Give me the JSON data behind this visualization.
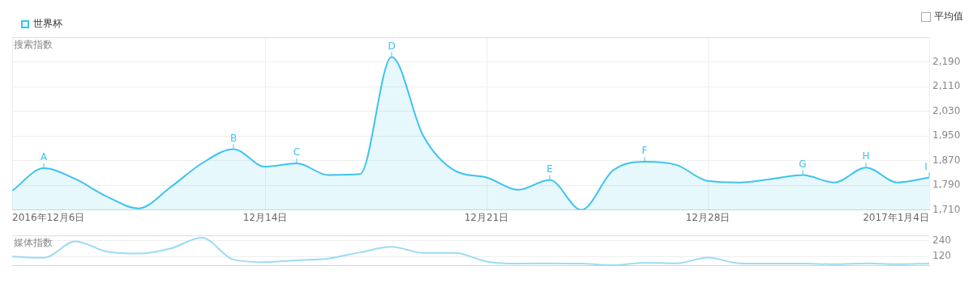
{
  "chart_data": [
    {
      "type": "area",
      "ylabel": "搜索指数",
      "legend": "top left",
      "grid": true,
      "x": [
        "2016-12-06",
        "2016-12-07",
        "2016-12-08",
        "2016-12-09",
        "2016-12-10",
        "2016-12-11",
        "2016-12-12",
        "2016-12-13",
        "2016-12-14",
        "2016-12-15",
        "2016-12-16",
        "2016-12-17",
        "2016-12-18",
        "2016-12-19",
        "2016-12-20",
        "2016-12-21",
        "2016-12-22",
        "2016-12-23",
        "2016-12-24",
        "2016-12-25",
        "2016-12-26",
        "2016-12-27",
        "2016-12-28",
        "2016-12-29",
        "2016-12-30",
        "2016-12-31",
        "2017-01-01",
        "2017-01-02",
        "2017-01-03",
        "2017-01-04"
      ],
      "xlim": [
        "2016-12-06",
        "2017-01-04"
      ],
      "xticks": [
        {
          "value": "2016-12-06",
          "label": "2016年12月6日"
        },
        {
          "value": "2016-12-14",
          "label": "12月14日"
        },
        {
          "value": "2016-12-21",
          "label": "12月21日"
        },
        {
          "value": "2016-12-28",
          "label": "12月28日"
        },
        {
          "value": "2017-01-04",
          "label": "2017年1月4日"
        }
      ],
      "ylim": [
        1710,
        2270
      ],
      "yticks": [
        {
          "value": 1710,
          "label": "1,710"
        },
        {
          "value": 1790,
          "label": "1,790"
        },
        {
          "value": 1870,
          "label": "1,870"
        },
        {
          "value": 1950,
          "label": "1,950"
        },
        {
          "value": 2030,
          "label": "2,030"
        },
        {
          "value": 2110,
          "label": "2,110"
        },
        {
          "value": 2190,
          "label": "2,190"
        }
      ],
      "series": [
        {
          "name": "世界杯",
          "color": "#3cc3f0",
          "values": [
            1772,
            1845,
            1810,
            1753,
            1715,
            1783,
            1861,
            1907,
            1850,
            1861,
            1823,
            1826,
            2206,
            1950,
            1837,
            1815,
            1775,
            1807,
            1710,
            1838,
            1866,
            1856,
            1804,
            1799,
            1810,
            1823,
            1799,
            1847,
            1799,
            1815
          ]
        }
      ],
      "annotations": [
        "平均值",
        {
          "text": "A",
          "x": "2016-12-07",
          "y": 1845
        },
        {
          "text": "B",
          "x": "2016-12-13",
          "y": 1907
        },
        {
          "text": "C",
          "x": "2016-12-15",
          "y": 1861
        },
        {
          "text": "D",
          "x": "2016-12-18",
          "y": 2206
        },
        {
          "text": "E",
          "x": "2016-12-23",
          "y": 1807
        },
        {
          "text": "F",
          "x": "2016-12-26",
          "y": 1866
        },
        {
          "text": "G",
          "x": "2016-12-31",
          "y": 1823
        },
        {
          "text": "H",
          "x": "2017-01-02",
          "y": 1847
        },
        {
          "text": "I",
          "x": "2017-01-04",
          "y": 1815
        }
      ]
    },
    {
      "type": "line",
      "ylabel": "媒体指数",
      "grid": "y",
      "tick_labels": "y",
      "x": [
        "2016-12-06",
        "2016-12-07",
        "2016-12-08",
        "2016-12-09",
        "2016-12-10",
        "2016-12-11",
        "2016-12-12",
        "2016-12-13",
        "2016-12-14",
        "2016-12-15",
        "2016-12-16",
        "2016-12-17",
        "2016-12-18",
        "2016-12-19",
        "2016-12-20",
        "2016-12-21",
        "2016-12-22",
        "2016-12-23",
        "2016-12-24",
        "2016-12-25",
        "2016-12-26",
        "2016-12-27",
        "2016-12-28",
        "2016-12-29",
        "2016-12-30",
        "2016-12-31",
        "2017-01-01",
        "2017-01-02",
        "2017-01-03",
        "2017-01-04"
      ],
      "xlim": [
        "2016-12-06",
        "2017-01-04"
      ],
      "ylim": [
        50,
        280
      ],
      "yticks": [
        120,
        240
      ],
      "series": [
        {
          "color": "#9adcf3",
          "values": [
            120,
            111,
            235,
            157,
            143,
            180,
            263,
            97,
            78,
            92,
            106,
            152,
            194,
            148,
            148,
            83,
            67,
            69,
            67,
            55,
            74,
            69,
            113,
            69,
            67,
            67,
            62,
            69,
            62,
            67
          ]
        }
      ]
    }
  ]
}
